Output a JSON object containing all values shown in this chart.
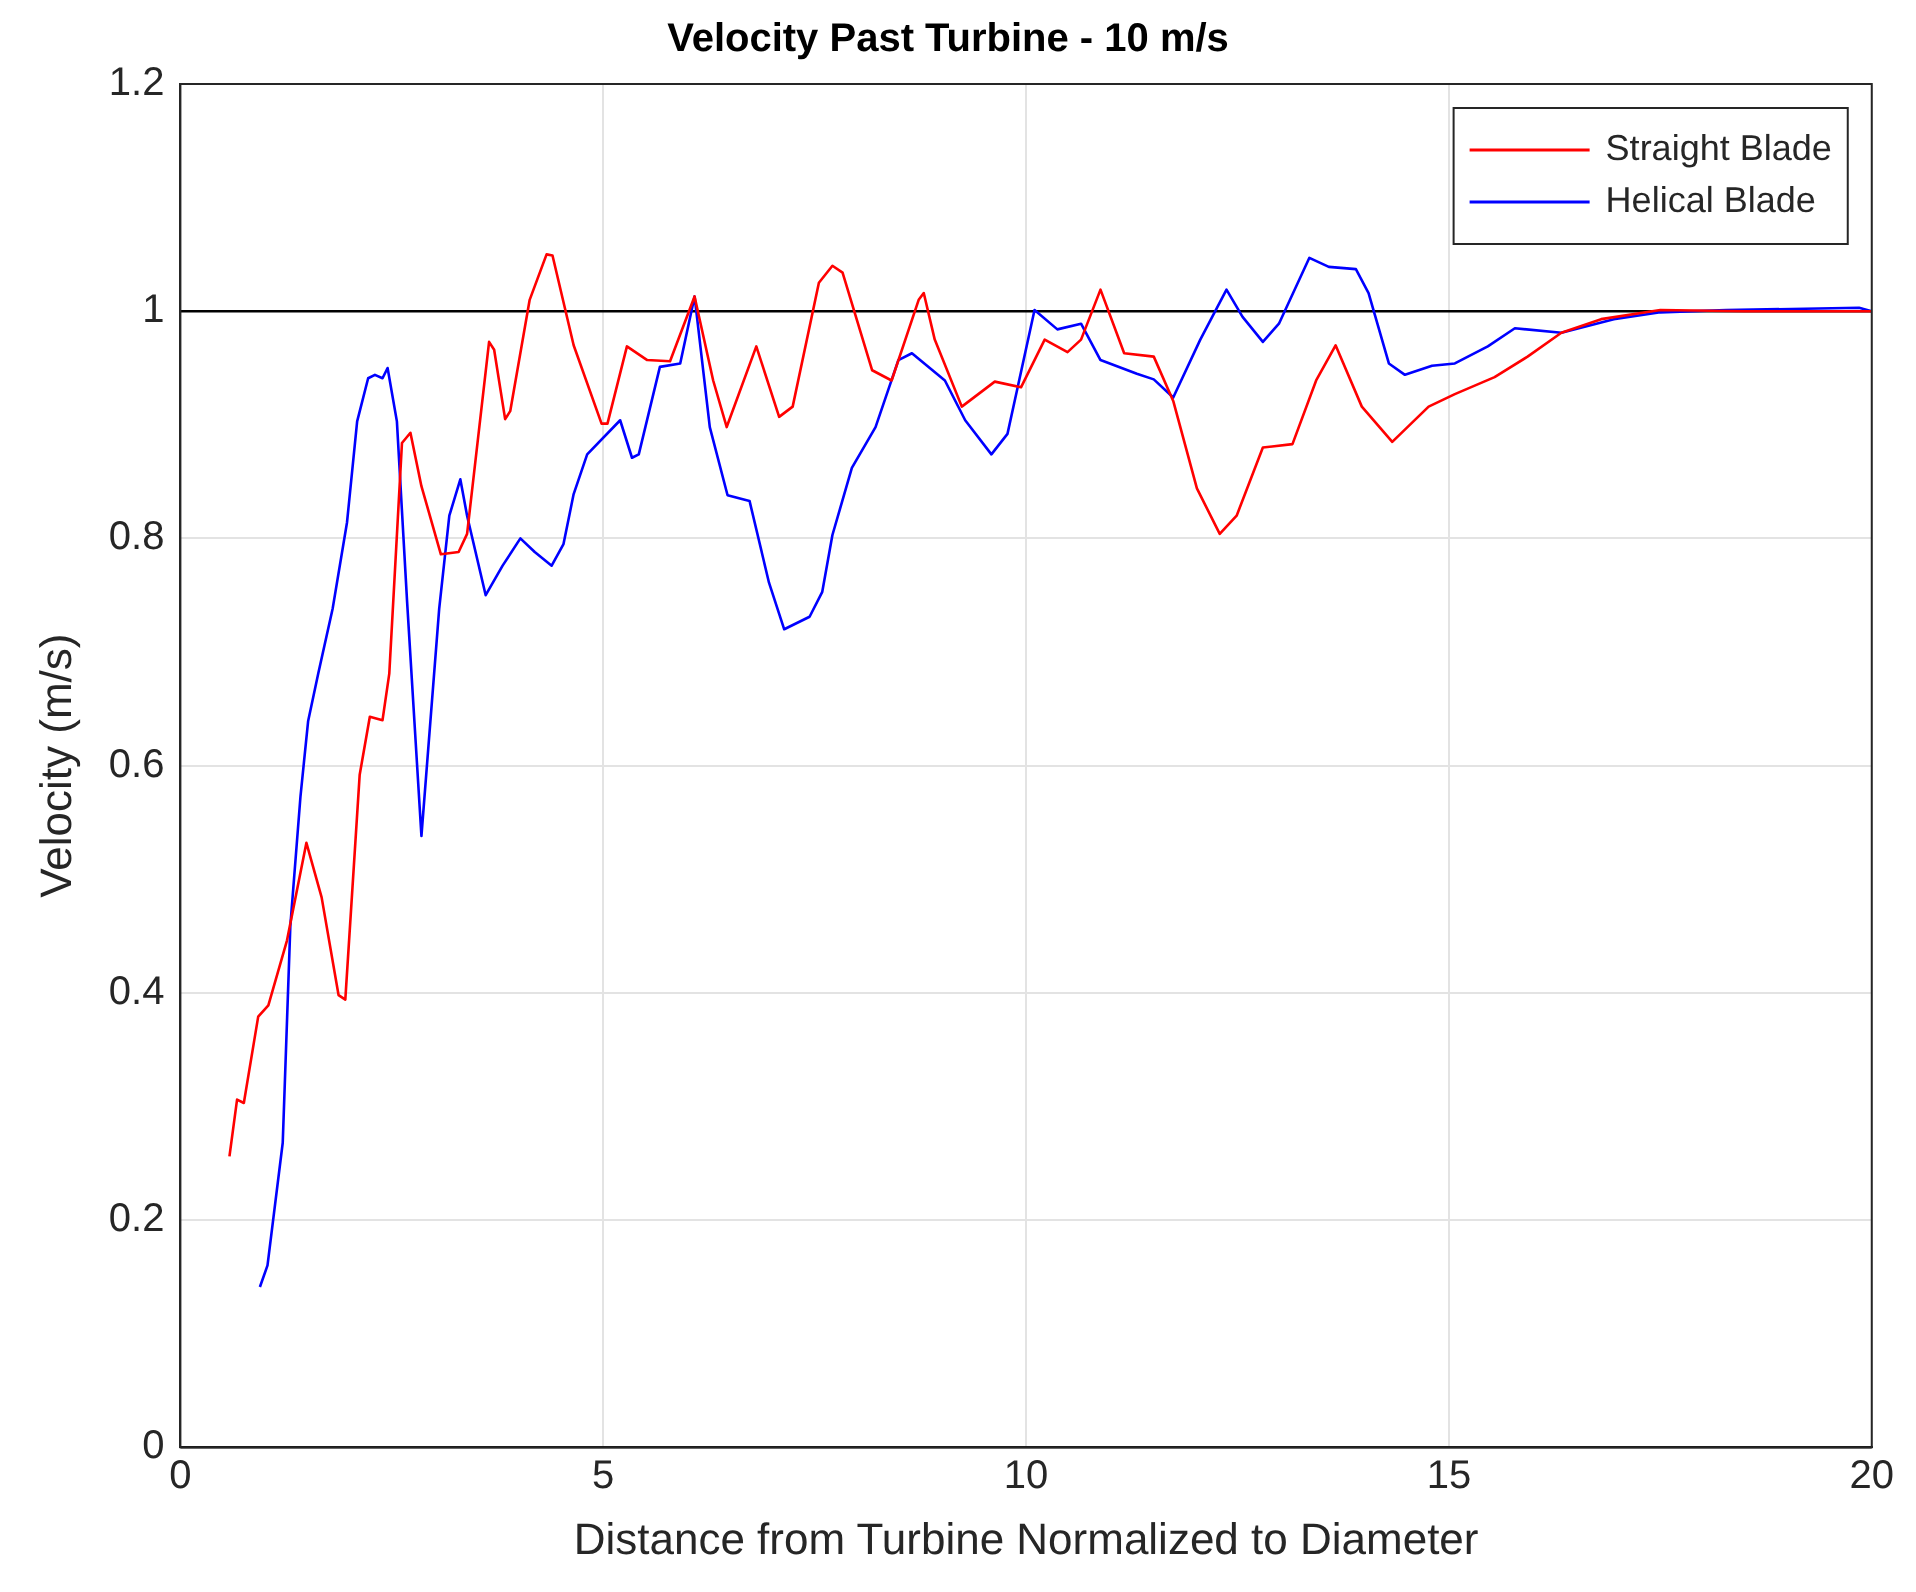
{
  "chart_data": {
    "type": "line",
    "title": "Velocity Past Turbine - 10 m/s",
    "xlabel": "Distance from Turbine Normalized to Diameter",
    "ylabel": "Velocity (m/s)",
    "xlim": [
      0,
      20
    ],
    "xticks": [
      0,
      5,
      10,
      15,
      20
    ],
    "ylim": [
      0,
      1.2
    ],
    "yticks": [
      0,
      0.2,
      0.4,
      0.6,
      0.8,
      1,
      1.2
    ],
    "grid": true,
    "legend": "top right",
    "marker": "none",
    "line_style": "solid",
    "ref_lines": [
      {
        "axis": "y",
        "value": 1,
        "color": "#000000"
      },
      {
        "axis": "y",
        "value": 0,
        "color": "#000000"
      }
    ],
    "series": [
      {
        "name": "Straight Blade",
        "color": "#ff0000",
        "x": [
          0.58,
          0.67,
          0.75,
          0.92,
          1.04,
          1.26,
          1.49,
          1.67,
          1.87,
          1.95,
          2.12,
          2.24,
          2.39,
          2.47,
          2.62,
          2.72,
          2.85,
          3.08,
          3.29,
          3.39,
          3.65,
          3.71,
          3.84,
          3.9,
          4.13,
          4.33,
          4.4,
          4.65,
          4.98,
          5.05,
          5.28,
          5.52,
          5.79,
          6.08,
          6.3,
          6.46,
          6.81,
          7.08,
          7.24,
          7.55,
          7.71,
          7.83,
          8.18,
          8.41,
          8.73,
          8.79,
          8.92,
          9.24,
          9.63,
          9.94,
          10.22,
          10.49,
          10.65,
          10.88,
          11.16,
          11.51,
          11.74,
          12.02,
          12.29,
          12.49,
          12.8,
          13.15,
          13.43,
          13.66,
          13.97,
          14.33,
          14.76,
          15.07,
          15.54,
          15.93,
          16.33,
          16.8,
          17.5,
          18.5,
          20
        ],
        "values": [
          0.256,
          0.306,
          0.303,
          0.379,
          0.389,
          0.446,
          0.532,
          0.484,
          0.398,
          0.394,
          0.592,
          0.643,
          0.64,
          0.681,
          0.884,
          0.893,
          0.846,
          0.786,
          0.788,
          0.804,
          0.973,
          0.966,
          0.905,
          0.912,
          1.01,
          1.05,
          1.049,
          0.97,
          0.901,
          0.901,
          0.969,
          0.957,
          0.956,
          1.013,
          0.939,
          0.898,
          0.969,
          0.907,
          0.916,
          1.025,
          1.04,
          1.034,
          0.948,
          0.939,
          1.01,
          1.016,
          0.975,
          0.916,
          0.938,
          0.933,
          0.975,
          0.964,
          0.975,
          1.019,
          0.963,
          0.96,
          0.921,
          0.844,
          0.804,
          0.82,
          0.88,
          0.883,
          0.939,
          0.97,
          0.916,
          0.885,
          0.916,
          0.927,
          0.942,
          0.96,
          0.981,
          0.993,
          1.001,
          1,
          1
        ]
      },
      {
        "name": "Helical Blade",
        "color": "#0000ff",
        "x": [
          0.94,
          1.03,
          1.21,
          1.3,
          1.42,
          1.51,
          1.63,
          1.8,
          1.97,
          2.09,
          2.22,
          2.3,
          2.39,
          2.45,
          2.56,
          2.68,
          2.85,
          3.06,
          3.18,
          3.31,
          3.39,
          3.61,
          3.81,
          4.02,
          4.19,
          4.39,
          4.53,
          4.65,
          4.81,
          5.2,
          5.34,
          5.42,
          5.67,
          5.91,
          6.08,
          6.26,
          6.47,
          6.73,
          6.96,
          7.14,
          7.44,
          7.59,
          7.71,
          7.94,
          8.22,
          8.49,
          8.65,
          9.04,
          9.28,
          9.59,
          9.78,
          10.1,
          10.37,
          10.65,
          10.88,
          11.31,
          11.51,
          11.74,
          12.06,
          12.37,
          12.56,
          12.8,
          12.99,
          13.35,
          13.58,
          13.9,
          14.05,
          14.29,
          14.48,
          14.8,
          15.07,
          15.46,
          15.78,
          16.33,
          16.95,
          17.5,
          18.28,
          19.85,
          20
        ],
        "values": [
          0.141,
          0.16,
          0.268,
          0.459,
          0.573,
          0.639,
          0.681,
          0.738,
          0.814,
          0.903,
          0.941,
          0.944,
          0.941,
          0.95,
          0.903,
          0.745,
          0.538,
          0.738,
          0.82,
          0.852,
          0.82,
          0.75,
          0.776,
          0.8,
          0.788,
          0.776,
          0.795,
          0.839,
          0.874,
          0.904,
          0.871,
          0.874,
          0.951,
          0.954,
          1.013,
          0.898,
          0.838,
          0.833,
          0.761,
          0.72,
          0.731,
          0.753,
          0.803,
          0.862,
          0.898,
          0.957,
          0.963,
          0.939,
          0.904,
          0.874,
          0.892,
          1.001,
          0.984,
          0.989,
          0.957,
          0.945,
          0.94,
          0.924,
          0.975,
          1.019,
          0.995,
          0.973,
          0.989,
          1.047,
          1.039,
          1.037,
          1.016,
          0.954,
          0.944,
          0.952,
          0.954,
          0.969,
          0.985,
          0.981,
          0.993,
          0.999,
          1.001,
          1.003,
          1
        ]
      }
    ]
  }
}
